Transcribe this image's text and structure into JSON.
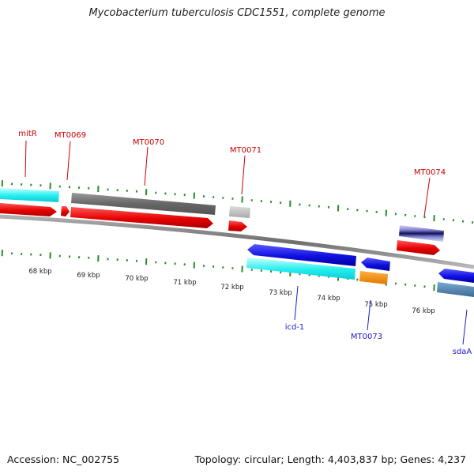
{
  "title": "Mycobacterium tuberculosis CDC1551, complete genome",
  "footer": {
    "accession": "Accession: NC_002755",
    "topology": "Topology: circular; Length: 4,403,837 bp; Genes: 4,237"
  },
  "colors": {
    "forward_cds": "#ee1111",
    "reverse_cds": "#1a1aee",
    "forward_label": "#cc0000",
    "reverse_label": "#1a1acc",
    "tick": "#2a8a2a",
    "backbone": "#808080"
  },
  "scale_labels": [
    "68 kbp",
    "69 kbp",
    "70 kbp",
    "71 kbp",
    "72 kbp",
    "73 kbp",
    "74 kbp",
    "75 kbp",
    "76 kbp"
  ],
  "forward_genes": [
    {
      "name": "mitR",
      "color": "#ee1111"
    },
    {
      "name": "MT0069",
      "color": "#ee1111"
    },
    {
      "name": "MT0070",
      "color": "#ee1111"
    },
    {
      "name": "MT0071",
      "color": "#ee1111"
    },
    {
      "name": "MT0074",
      "color": "#ee1111"
    }
  ],
  "reverse_genes": [
    {
      "name": "icd-1",
      "color": "#1a1aee"
    },
    {
      "name": "MT0073",
      "color": "#1a1aee"
    },
    {
      "name": "sdaA",
      "color": "#1a1aee"
    }
  ]
}
